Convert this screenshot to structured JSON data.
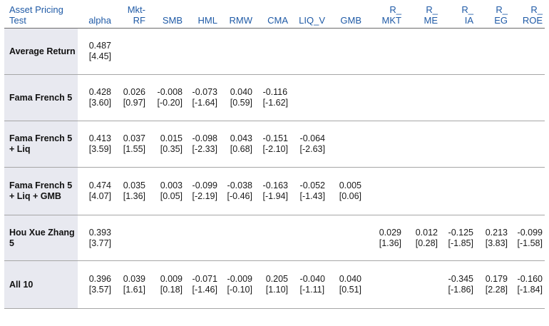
{
  "columns": [
    "alpha",
    "Mkt-RF",
    "SMB",
    "HML",
    "RMW",
    "CMA",
    "LIQ_V",
    "GMB",
    "R_MKT",
    "R_ME",
    "R_IA",
    "R_EG",
    "R_ROE"
  ],
  "header": {
    "first": "Asset Pricing Test",
    "cols": [
      "alpha",
      "Mkt-\nRF",
      "SMB",
      "HML",
      "RMW",
      "CMA",
      "LIQ_V",
      "GMB",
      "R_\nMKT",
      "R_\nME",
      "R_\nIA",
      "R_\nEG",
      "R_\nROE"
    ]
  },
  "rows": [
    {
      "label": "Average Return",
      "cells": [
        [
          "0.487",
          "[4.45]"
        ],
        null,
        null,
        null,
        null,
        null,
        null,
        null,
        null,
        null,
        null,
        null,
        null
      ]
    },
    {
      "label": "Fama French 5",
      "cells": [
        [
          "0.428",
          "[3.60]"
        ],
        [
          "0.026",
          "[0.97]"
        ],
        [
          "-0.008",
          "[-0.20]"
        ],
        [
          "-0.073",
          "[-1.64]"
        ],
        [
          "0.040",
          "[0.59]"
        ],
        [
          "-0.116",
          "[-1.62]"
        ],
        null,
        null,
        null,
        null,
        null,
        null,
        null
      ]
    },
    {
      "label": "Fama French 5 + Liq",
      "cells": [
        [
          "0.413",
          "[3.59]"
        ],
        [
          "0.037",
          "[1.55]"
        ],
        [
          "0.015",
          "[0.35]"
        ],
        [
          "-0.098",
          "[-2.33]"
        ],
        [
          "0.043",
          "[0.68]"
        ],
        [
          "-0.151",
          "[-2.10]"
        ],
        [
          "-0.064",
          "[-2.63]"
        ],
        null,
        null,
        null,
        null,
        null,
        null
      ]
    },
    {
      "label": "Fama French 5 + Liq + GMB",
      "cells": [
        [
          "0.474",
          "[4.07]"
        ],
        [
          "0.035",
          "[1.36]"
        ],
        [
          "0.003",
          "[0.05]"
        ],
        [
          "-0.099",
          "[-2.19]"
        ],
        [
          "-0.038",
          "[-0.46]"
        ],
        [
          "-0.163",
          "[-1.94]"
        ],
        [
          "-0.052",
          "[-1.43]"
        ],
        [
          "0.005",
          "[0.06]"
        ],
        null,
        null,
        null,
        null,
        null
      ]
    },
    {
      "label": "Hou Xue Zhang 5",
      "cells": [
        [
          "0.393",
          "[3.77]"
        ],
        null,
        null,
        null,
        null,
        null,
        null,
        null,
        [
          "0.029",
          "[1.36]"
        ],
        [
          "0.012",
          "[0.28]"
        ],
        [
          "-0.125",
          "[-1.85]"
        ],
        [
          "0.213",
          "[3.83]"
        ],
        [
          "-0.099",
          "[-1.58]"
        ]
      ]
    },
    {
      "label": "All 10",
      "cells": [
        [
          "0.396",
          "[3.57]"
        ],
        [
          "0.039",
          "[1.61]"
        ],
        [
          "0.009",
          "[0.18]"
        ],
        [
          "-0.071",
          "[-1.46]"
        ],
        [
          "-0.009",
          "[-0.10]"
        ],
        [
          "0.205",
          "[1.10]"
        ],
        [
          "-0.040",
          "[-1.11]"
        ],
        [
          "0.040",
          "[0.51]"
        ],
        null,
        null,
        [
          "-0.345",
          "[-1.86]"
        ],
        [
          "0.179",
          "[2.28]"
        ],
        [
          "-0.160",
          "[-1.84]"
        ]
      ]
    }
  ]
}
